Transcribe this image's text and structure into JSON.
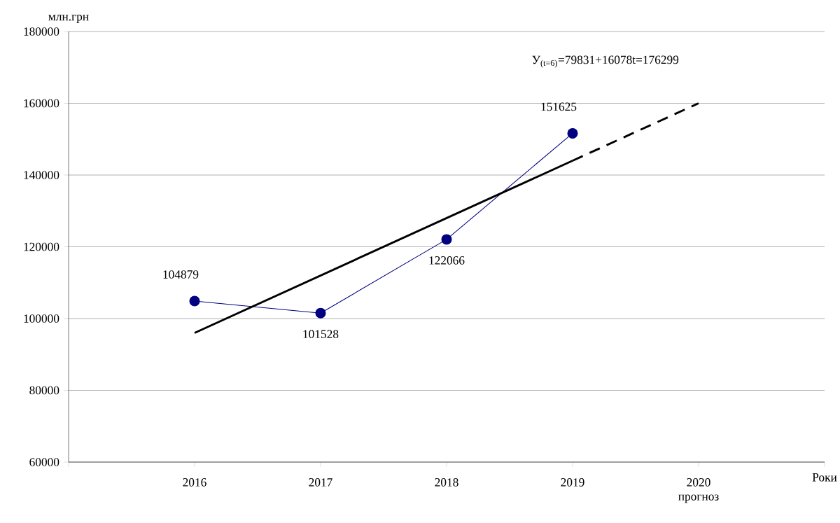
{
  "chart_data": {
    "type": "line",
    "ylabel": "млн.грн",
    "xlabel": "Роки",
    "annotations": [
      "У$_{(t=6)}$=79831+16078t=176299"
    ],
    "xlim": [
      2015,
      2021
    ],
    "xticks": [
      {
        "value": 2015,
        "label": null
      },
      2016,
      2017,
      2018,
      2019,
      {
        "value": 2020,
        "label": "2020 прогноз"
      },
      {
        "value": 2021,
        "label": null
      }
    ],
    "ylim": [
      60000,
      180000
    ],
    "yticks": [
      60000,
      80000,
      100000,
      120000,
      140000,
      160000,
      180000
    ],
    "grid": "y",
    "series": [
      {
        "color": "#000080",
        "marker": "circle",
        "line_style": "solid",
        "x": [
          2016,
          2017,
          2018,
          2019
        ],
        "values": [
          104879,
          101528,
          122066,
          151625
        ],
        "value_labels": [
          "104879",
          "101528",
          "122066",
          "151625"
        ]
      },
      {
        "type": "line",
        "color": "#000000",
        "marker": "none",
        "line_style": "solid",
        "x": [
          2016,
          2019
        ],
        "values": [
          96000,
          144000
        ]
      },
      {
        "type": "line",
        "color": "#000000",
        "marker": "none",
        "line_style": "dashed",
        "x": [
          2019,
          2020
        ],
        "values": [
          144000,
          160000
        ]
      }
    ]
  }
}
